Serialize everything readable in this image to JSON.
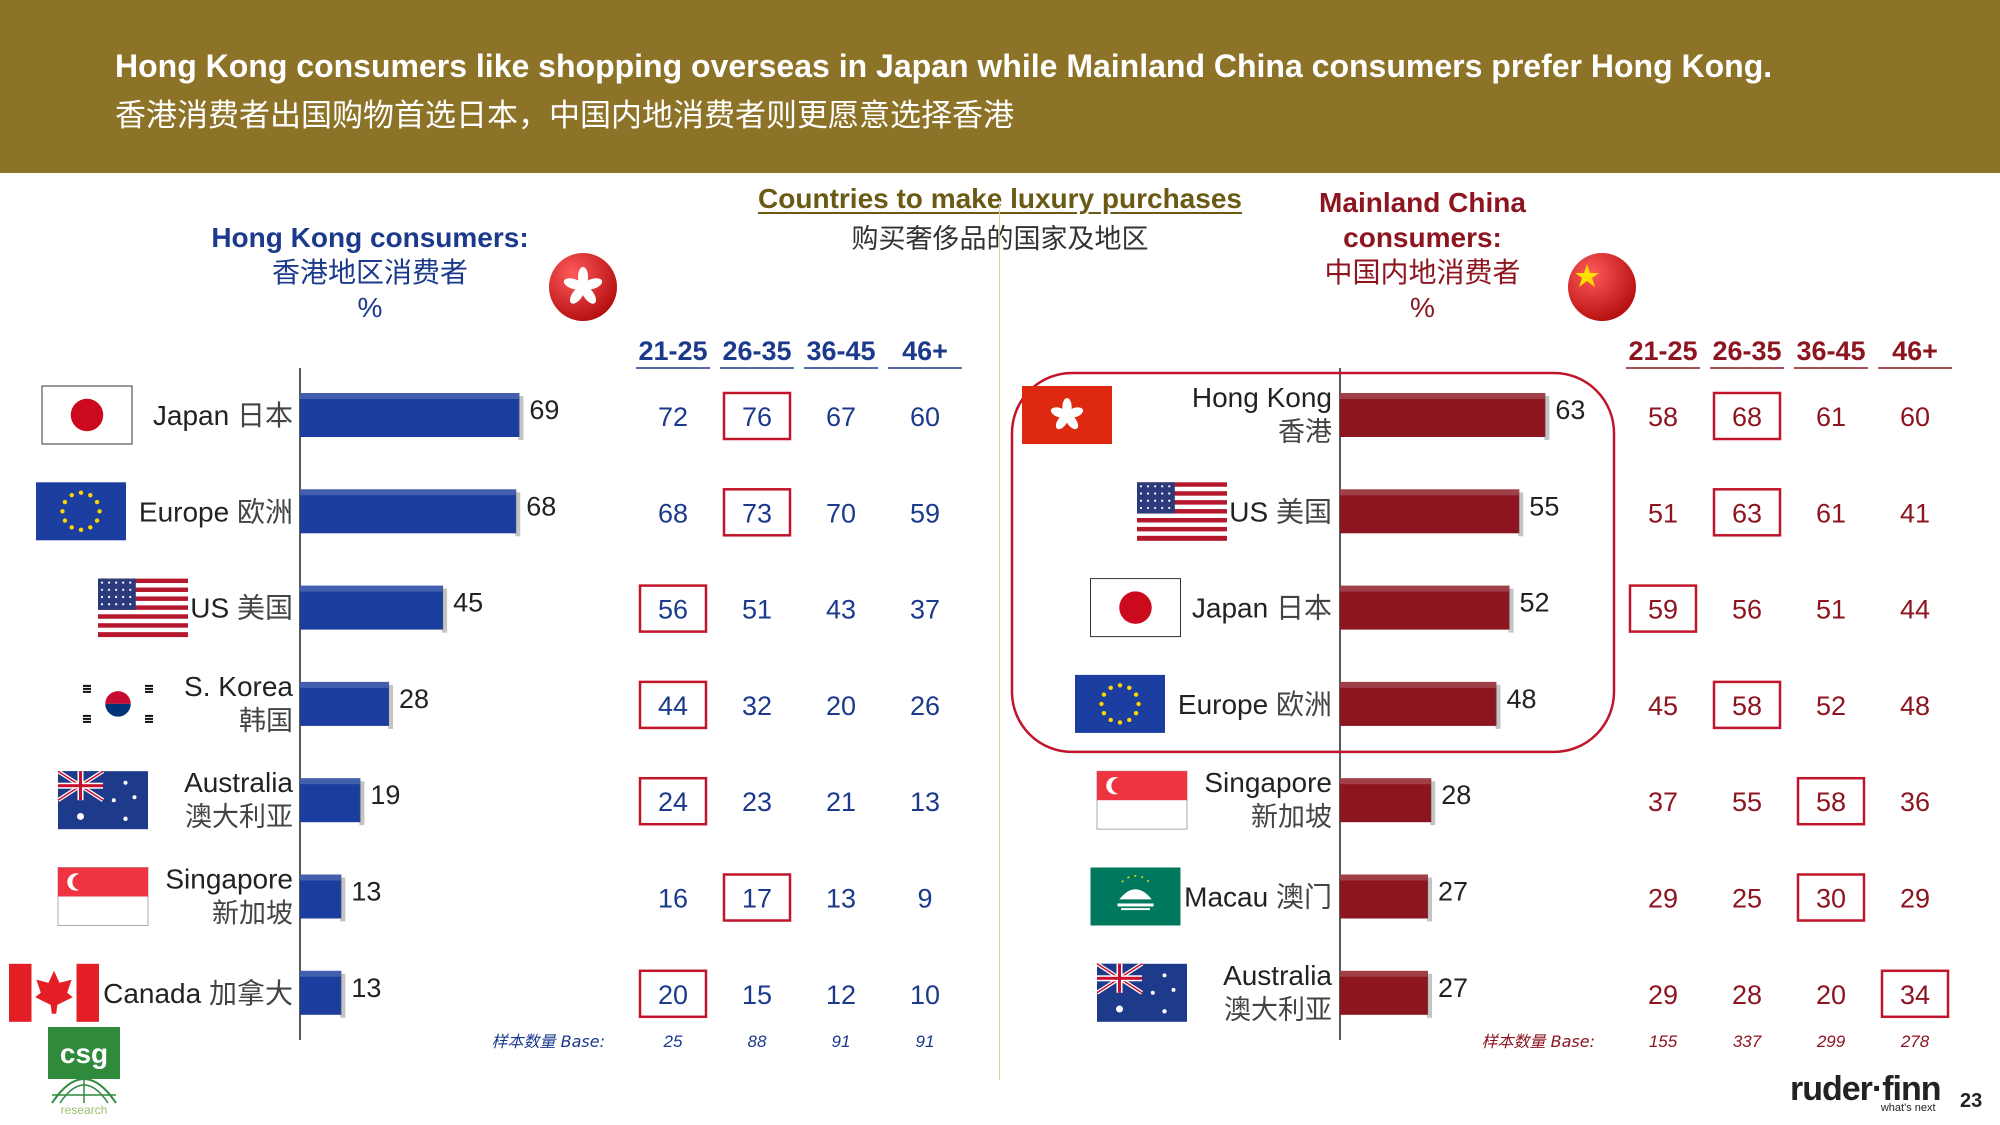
{
  "header": {
    "title_en": "Hong Kong consumers like shopping overseas in Japan while Mainland China consumers prefer Hong Kong.",
    "title_zh": "香港消费者出国购物首选日本，中国内地消费者则更愿意选择香港"
  },
  "center_title": {
    "en": "Countries to make luxury purchases",
    "zh": "购买奢侈品的国家及地区"
  },
  "chart_data": [
    {
      "type": "bar",
      "orientation": "horizontal",
      "segment_title": {
        "en": "Hong Kong consumers:",
        "zh": "香港地区消费者",
        "unit": "%"
      },
      "categories": [
        {
          "en": "Japan",
          "zh": "日本",
          "flag": "japan-flag"
        },
        {
          "en": "Europe",
          "zh": "欧洲",
          "flag": "eu-flag"
        },
        {
          "en": "US",
          "zh": "美国",
          "flag": "us-flag"
        },
        {
          "en": "S. Korea",
          "zh": "韩国",
          "flag": "south-korea-flag"
        },
        {
          "en": "Australia",
          "zh": "澳大利亚",
          "flag": "australia-flag"
        },
        {
          "en": "Singapore",
          "zh": "新加坡",
          "flag": "singapore-flag"
        },
        {
          "en": "Canada",
          "zh": "加拿大",
          "flag": "canada-flag"
        }
      ],
      "values": [
        69,
        68,
        45,
        28,
        19,
        13,
        13
      ],
      "xlim": [
        0,
        100
      ],
      "bar_color": "#1a3d9e",
      "age_groups": [
        "21-25",
        "26-35",
        "36-45",
        "46+"
      ],
      "age_values": [
        [
          72,
          76,
          67,
          60
        ],
        [
          68,
          73,
          70,
          59
        ],
        [
          56,
          51,
          43,
          37
        ],
        [
          44,
          32,
          20,
          26
        ],
        [
          24,
          23,
          21,
          13
        ],
        [
          16,
          17,
          13,
          9
        ],
        [
          20,
          15,
          12,
          10
        ]
      ],
      "highlighted_age_column": [
        1,
        1,
        0,
        0,
        0,
        1,
        0
      ],
      "base_label": "样本数量 Base:",
      "base_values": [
        25,
        88,
        91,
        91
      ],
      "text_color": "#1b3a8c"
    },
    {
      "type": "bar",
      "orientation": "horizontal",
      "segment_title": {
        "en1": "Mainland China",
        "en2": "consumers:",
        "zh": "中国内地消费者",
        "unit": "%"
      },
      "categories": [
        {
          "en": "Hong Kong",
          "zh": "香港",
          "flag": "hong-kong-flag"
        },
        {
          "en": "US",
          "zh": "美国",
          "flag": "us-flag"
        },
        {
          "en": "Japan",
          "zh": "日本",
          "flag": "japan-flag"
        },
        {
          "en": "Europe",
          "zh": "欧洲",
          "flag": "eu-flag"
        },
        {
          "en": "Singapore",
          "zh": "新加坡",
          "flag": "singapore-flag"
        },
        {
          "en": "Macau",
          "zh": "澳门",
          "flag": "macau-flag"
        },
        {
          "en": "Australia",
          "zh": "澳大利亚",
          "flag": "australia-flag"
        }
      ],
      "values": [
        63,
        55,
        52,
        48,
        28,
        27,
        27
      ],
      "xlim": [
        0,
        100
      ],
      "bar_color": "#8c1520",
      "top_group_highlight": 4,
      "age_groups": [
        "21-25",
        "26-35",
        "36-45",
        "46+"
      ],
      "age_values": [
        [
          58,
          68,
          61,
          60
        ],
        [
          51,
          63,
          61,
          41
        ],
        [
          59,
          56,
          51,
          44
        ],
        [
          45,
          58,
          52,
          48
        ],
        [
          37,
          55,
          58,
          36
        ],
        [
          29,
          25,
          30,
          29
        ],
        [
          29,
          28,
          20,
          34
        ]
      ],
      "highlighted_age_column": [
        1,
        1,
        0,
        1,
        2,
        2,
        3
      ],
      "base_label": "样本数量 Base:",
      "base_values": [
        155,
        337,
        299,
        278
      ],
      "text_color": "#8c1520"
    }
  ],
  "badges": {
    "left": "hong-kong-badge-icon",
    "right": "china-badge-icon"
  },
  "footer": {
    "logo_left": "csg",
    "logo_left_sub": "research",
    "logo_right": "ruder·finn",
    "logo_right_tag": "what's next",
    "page_number": "23"
  }
}
